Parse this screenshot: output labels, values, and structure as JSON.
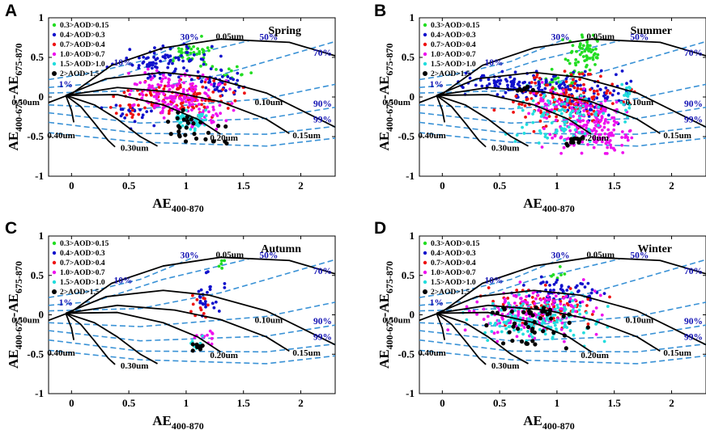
{
  "figure": {
    "palette": {
      "grid_black": "#000000",
      "grid_blue": "#3a92d6",
      "label_blue": "#1414b4",
      "c1": "#22dd22",
      "c2": "#1111cc",
      "c3": "#ee1111",
      "c4": "#ee11ee",
      "c5": "#22dddd",
      "c6": "#000000"
    },
    "legend": [
      {
        "label": "0.3>AOD>0.15",
        "color": "#22dd22"
      },
      {
        "label": "0.4>AOD>0.3",
        "color": "#1111cc"
      },
      {
        "label": "0.7>AOD>0.4",
        "color": "#ee1111"
      },
      {
        "label": "1.0>AOD>0.7",
        "color": "#ee11ee"
      },
      {
        "label": "1.5>AOD>1.0",
        "color": "#22dddd"
      },
      {
        "label": "2>AOD>1.5",
        "color": "#000000"
      }
    ],
    "grid_labels": {
      "radius": [
        "0.05um",
        "0.10um",
        "0.15um",
        "0.20um",
        "0.30um",
        "0.40um",
        "0.50um"
      ],
      "fraction": [
        "1%",
        "10%",
        "30%",
        "50%",
        "70%",
        "90%",
        "99%"
      ]
    },
    "panels": [
      {
        "letter": "A",
        "season": "Spring"
      },
      {
        "letter": "B",
        "season": "Summer"
      },
      {
        "letter": "C",
        "season": "Autumn"
      },
      {
        "letter": "D",
        "season": "Winter"
      }
    ]
  },
  "chart_data": [
    {
      "type": "scatter",
      "title": "Spring",
      "xlabel_main": "AE",
      "xlabel_sub": "400-870",
      "ylabel_main": "AE",
      "ylabel_sub1": "400-675",
      "ylabel_dash": "-AE",
      "ylabel_sub2": "675-870",
      "xlim": [
        -0.2,
        2.3
      ],
      "ylim": [
        -1,
        1
      ],
      "xticks": [
        "0",
        "0.5",
        "1",
        "1.5",
        "2"
      ],
      "yticks": [
        "1",
        "0.5",
        "0",
        "-0.5",
        "-1"
      ],
      "series": [
        {
          "name": "0.3>AOD>0.15",
          "clusters": [
            [
              1.05,
              0.55,
              0.2,
              0.15,
              40
            ],
            [
              1.4,
              0.3,
              0.15,
              0.1,
              12
            ]
          ]
        },
        {
          "name": "0.4>AOD>0.3",
          "clusters": [
            [
              0.85,
              0.45,
              0.35,
              0.2,
              90
            ],
            [
              1.3,
              0.2,
              0.2,
              0.15,
              40
            ],
            [
              0.5,
              -0.2,
              0.2,
              0.15,
              20
            ]
          ]
        },
        {
          "name": "0.7>AOD>0.4",
          "clusters": [
            [
              1.0,
              0.0,
              0.4,
              0.2,
              110
            ],
            [
              0.5,
              -0.15,
              0.15,
              0.15,
              15
            ]
          ]
        },
        {
          "name": "1.0>AOD>0.7",
          "clusters": [
            [
              0.85,
              0.05,
              0.35,
              0.22,
              150
            ],
            [
              1.2,
              -0.25,
              0.2,
              0.15,
              40
            ]
          ]
        },
        {
          "name": "1.5>AOD>1.0",
          "clusters": [
            [
              1.05,
              -0.3,
              0.15,
              0.12,
              60
            ]
          ]
        },
        {
          "name": "2>AOD>1.5",
          "clusters": [
            [
              1.0,
              -0.35,
              0.25,
              0.2,
              25
            ],
            [
              1.3,
              -0.55,
              0.1,
              0.03,
              5
            ]
          ]
        }
      ]
    },
    {
      "type": "scatter",
      "title": "Summer",
      "xlabel_main": "AE",
      "xlabel_sub": "400-870",
      "ylabel_main": "AE",
      "ylabel_sub1": "400-675",
      "ylabel_dash": "-AE",
      "ylabel_sub2": "675-870",
      "xlim": [
        -0.2,
        2.3
      ],
      "ylim": [
        -1,
        1
      ],
      "xticks": [
        "0",
        "0.5",
        "1",
        "1.5",
        "2"
      ],
      "yticks": [
        "1",
        "0.5",
        "0",
        "-0.5",
        "-1"
      ],
      "series": [
        {
          "name": "0.3>AOD>0.15",
          "clusters": [
            [
              1.25,
              0.55,
              0.15,
              0.2,
              60
            ],
            [
              1.05,
              0.2,
              0.2,
              0.15,
              30
            ]
          ]
        },
        {
          "name": "0.4>AOD>0.3",
          "clusters": [
            [
              0.7,
              0.15,
              0.5,
              0.15,
              120
            ],
            [
              1.3,
              0.0,
              0.3,
              0.25,
              80
            ]
          ]
        },
        {
          "name": "0.7>AOD>0.4",
          "clusters": [
            [
              1.1,
              -0.05,
              0.4,
              0.3,
              150
            ]
          ]
        },
        {
          "name": "1.0>AOD>0.7",
          "clusters": [
            [
              1.3,
              -0.35,
              0.3,
              0.3,
              200
            ],
            [
              0.9,
              -0.1,
              0.2,
              0.2,
              30
            ]
          ]
        },
        {
          "name": "1.5>AOD>1.0",
          "clusters": [
            [
              1.05,
              -0.25,
              0.35,
              0.3,
              90
            ],
            [
              1.6,
              -0.05,
              0.05,
              0.2,
              20
            ]
          ]
        },
        {
          "name": "2>AOD>1.5",
          "clusters": [
            [
              0.7,
              0.1,
              0.1,
              0.03,
              8
            ],
            [
              1.15,
              -0.55,
              0.08,
              0.05,
              12
            ]
          ]
        }
      ]
    },
    {
      "type": "scatter",
      "title": "Autumn",
      "xlabel_main": "AE",
      "xlabel_sub": "400-870",
      "ylabel_main": "AE",
      "ylabel_sub1": "400-675",
      "ylabel_dash": "-AE",
      "ylabel_sub2": "675-870",
      "xlim": [
        -0.2,
        2.3
      ],
      "ylim": [
        -1,
        1
      ],
      "xticks": [
        "0",
        "0.5",
        "1",
        "1.5",
        "2"
      ],
      "yticks": [
        "1",
        "0.5",
        "0",
        "-0.5",
        "-1"
      ],
      "series": [
        {
          "name": "0.3>AOD>0.15",
          "clusters": [
            [
              1.3,
              0.65,
              0.05,
              0.08,
              5
            ]
          ]
        },
        {
          "name": "0.4>AOD>0.3",
          "clusters": [
            [
              1.2,
              0.25,
              0.15,
              0.25,
              25
            ]
          ]
        },
        {
          "name": "0.7>AOD>0.4",
          "clusters": [
            [
              1.1,
              0.05,
              0.1,
              0.2,
              12
            ]
          ]
        },
        {
          "name": "1.0>AOD>0.7",
          "clusters": [
            [
              1.15,
              -0.3,
              0.1,
              0.08,
              12
            ]
          ]
        },
        {
          "name": "1.5>AOD>1.0",
          "clusters": [
            [
              1.1,
              -0.35,
              0.08,
              0.08,
              8
            ]
          ]
        },
        {
          "name": "2>AOD>1.5",
          "clusters": [
            [
              1.1,
              -0.4,
              0.08,
              0.05,
              10
            ]
          ]
        }
      ]
    },
    {
      "type": "scatter",
      "title": "Winter",
      "xlabel_main": "AE",
      "xlabel_sub": "400-870",
      "ylabel_main": "AE",
      "ylabel_sub1": "400-675",
      "ylabel_dash": "-AE",
      "ylabel_sub2": "675-870",
      "xlim": [
        -0.2,
        2.3
      ],
      "ylim": [
        -1,
        1
      ],
      "xticks": [
        "0",
        "0.5",
        "1",
        "1.5",
        "2"
      ],
      "yticks": [
        "1",
        "0.5",
        "0",
        "-0.5",
        "-1"
      ],
      "series": [
        {
          "name": "0.3>AOD>0.15",
          "clusters": [
            [
              1.0,
              0.5,
              0.1,
              0.08,
              6
            ]
          ]
        },
        {
          "name": "0.4>AOD>0.3",
          "clusters": [
            [
              1.0,
              0.3,
              0.3,
              0.15,
              60
            ]
          ]
        },
        {
          "name": "0.7>AOD>0.4",
          "clusters": [
            [
              0.9,
              0.1,
              0.4,
              0.2,
              90
            ]
          ]
        },
        {
          "name": "1.0>AOD>0.7",
          "clusters": [
            [
              0.8,
              0.0,
              0.45,
              0.25,
              180
            ]
          ]
        },
        {
          "name": "1.5>AOD>1.0",
          "clusters": [
            [
              0.85,
              -0.05,
              0.45,
              0.25,
              150
            ]
          ]
        },
        {
          "name": "2>AOD>1.5",
          "clusters": [
            [
              0.8,
              -0.1,
              0.4,
              0.25,
              40
            ],
            [
              0.75,
              -0.35,
              0.08,
              0.05,
              6
            ]
          ]
        }
      ]
    }
  ]
}
